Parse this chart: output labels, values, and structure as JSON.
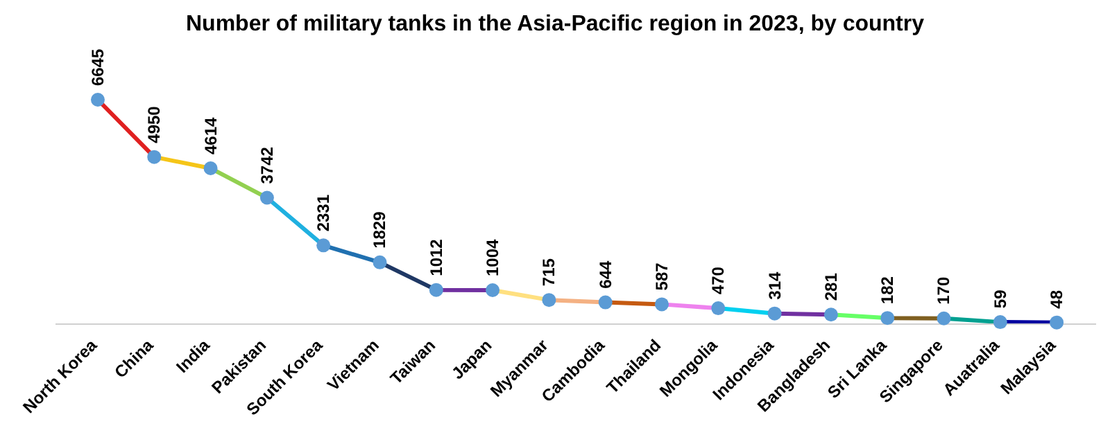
{
  "chart_data": {
    "type": "line",
    "title": "Number of military tanks in the Asia-Pacific region in 2023, by country",
    "categories": [
      "North Korea",
      "China",
      "India",
      "Pakistan",
      "South Korea",
      "Vietnam",
      "Taiwan",
      "Japan",
      "Myanmar",
      "Cambodia",
      "Thailand",
      "Mongolia",
      "Indonesia",
      "Bangladesh",
      "Sri Lanka",
      "Singapore",
      "Auatralia",
      "Malaysia"
    ],
    "values": [
      6645,
      4950,
      4614,
      3742,
      2331,
      1829,
      1012,
      1004,
      715,
      644,
      587,
      470,
      314,
      281,
      182,
      170,
      59,
      48
    ],
    "color": "#5b9bd5",
    "colors": [
      "#e02020",
      "#f5c518",
      "#92d050",
      "#1fb0e0",
      "#2070b0",
      "#1f3864",
      "#7030a0",
      "#ffe080",
      "#f4b183",
      "#c55a11",
      "#ee82ee",
      "#00d0f0",
      "#7030a0",
      "#66ff66",
      "#7f5f20",
      "#00a090",
      "#0000a0",
      "#0000a0"
    ],
    "data_labels": true,
    "marker": "circle"
  }
}
